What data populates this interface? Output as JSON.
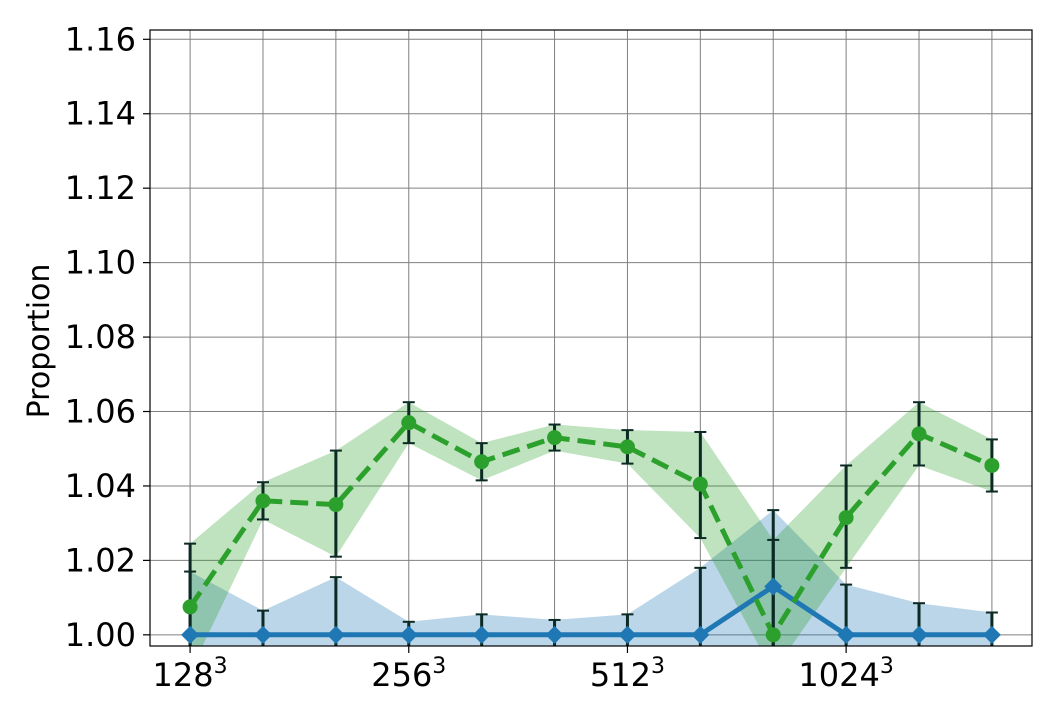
{
  "chart_data": {
    "type": "line",
    "title": "",
    "xlabel": "",
    "ylabel": "Proportion",
    "ylim": [
      0.997,
      1.1625
    ],
    "xlim": [
      0.45,
      12.55
    ],
    "grid": true,
    "legend": "none",
    "x_ticks": [
      {
        "pos": 1,
        "base": "128",
        "exp": "3"
      },
      {
        "pos": 4,
        "base": "256",
        "exp": "3"
      },
      {
        "pos": 7,
        "base": "512",
        "exp": "3"
      },
      {
        "pos": 10,
        "base": "1024",
        "exp": "3"
      }
    ],
    "y_ticks": [
      "1.00",
      "1.02",
      "1.04",
      "1.06",
      "1.08",
      "1.10",
      "1.12",
      "1.14",
      "1.16"
    ],
    "x": [
      1,
      2,
      3,
      4,
      5,
      6,
      7,
      8,
      9,
      10,
      11,
      12
    ],
    "series": [
      {
        "color": "#2ca02c",
        "marker": "circle",
        "linestyle": "dashed",
        "values": [
          1.0075,
          1.036,
          1.035,
          1.057,
          1.0465,
          1.053,
          1.0505,
          1.0405,
          1.0,
          1.0315,
          1.054,
          1.0455
        ],
        "err_low": [
          0.99,
          1.031,
          1.021,
          1.0515,
          1.0415,
          1.0495,
          1.046,
          1.026,
          0.99,
          1.018,
          1.0455,
          1.0385
        ],
        "err_high": [
          1.0245,
          1.041,
          1.0495,
          1.0625,
          1.0515,
          1.0565,
          1.055,
          1.0545,
          1.0255,
          1.0455,
          1.0625,
          1.0525
        ]
      },
      {
        "color": "#1f77b4",
        "marker": "diamond",
        "linestyle": "solid",
        "values": [
          1.0,
          1.0,
          1.0,
          1.0,
          1.0,
          1.0,
          1.0,
          1.0,
          1.013,
          1.0,
          1.0,
          1.0
        ],
        "err_low": [
          0.99,
          0.99,
          0.99,
          0.99,
          0.99,
          0.99,
          0.99,
          0.99,
          0.99,
          0.99,
          0.99,
          0.99
        ],
        "err_high": [
          1.017,
          1.0065,
          1.0155,
          1.0035,
          1.0055,
          1.004,
          1.0055,
          1.018,
          1.0335,
          1.0135,
          1.0085,
          1.006
        ]
      }
    ]
  }
}
